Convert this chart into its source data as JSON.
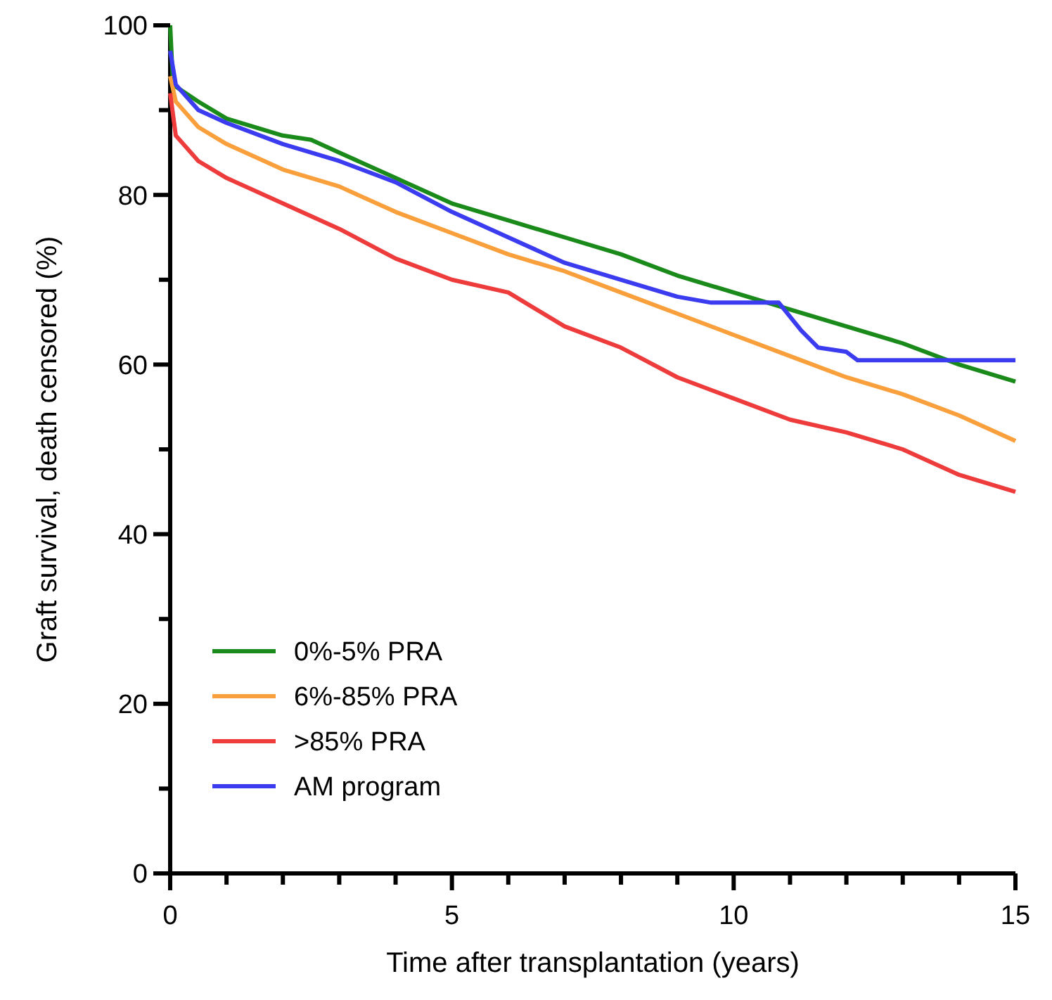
{
  "chart_data": {
    "type": "line",
    "xlabel": "Time after transplantation (years)",
    "ylabel": "Graft survival, death censored (%)",
    "xlim": [
      0,
      15
    ],
    "ylim": [
      0,
      100
    ],
    "xticks": [
      0,
      {
        "value": 1,
        "label": null
      },
      {
        "value": 2,
        "label": null
      },
      {
        "value": 3,
        "label": null
      },
      {
        "value": 4,
        "label": null
      },
      5,
      {
        "value": 6,
        "label": null
      },
      {
        "value": 7,
        "label": null
      },
      {
        "value": 8,
        "label": null
      },
      {
        "value": 9,
        "label": null
      },
      10,
      {
        "value": 11,
        "label": null
      },
      {
        "value": 12,
        "label": null
      },
      {
        "value": 13,
        "label": null
      },
      {
        "value": 14,
        "label": null
      },
      15
    ],
    "yticks": [
      0,
      {
        "value": 10,
        "label": null
      },
      20,
      {
        "value": 30,
        "label": null
      },
      40,
      {
        "value": 50,
        "label": null
      },
      60,
      {
        "value": 70,
        "label": null
      },
      80,
      {
        "value": 90,
        "label": null
      },
      100
    ],
    "grid": false,
    "legend": "bottom left",
    "line_style": "solid",
    "marker": "none",
    "series": [
      {
        "name": "0%-5% PRA",
        "color": "#1a8a1a",
        "x": [
          0,
          0.05,
          0.5,
          1,
          2,
          2.5,
          3,
          4,
          5,
          6,
          7,
          8,
          9,
          10,
          11,
          12,
          13,
          14,
          15
        ],
        "values": [
          100,
          93,
          91,
          89,
          87,
          86.5,
          85,
          82,
          79,
          77,
          75,
          73,
          70.5,
          68.5,
          66.5,
          64.5,
          62.5,
          60,
          58
        ]
      },
      {
        "name": "6%-85% PRA",
        "color": "#f9a03c",
        "x": [
          0,
          0.1,
          0.5,
          1,
          2,
          3,
          4,
          5,
          6,
          7,
          8,
          9,
          10,
          11,
          12,
          13,
          14,
          15
        ],
        "values": [
          94,
          91,
          88,
          86,
          83,
          81,
          78,
          75.5,
          73,
          71,
          68.5,
          66,
          63.5,
          61,
          58.5,
          56.5,
          54,
          51
        ]
      },
      {
        "name": ">85% PRA",
        "color": "#ee3b3b",
        "x": [
          0,
          0.1,
          0.5,
          1,
          2,
          3,
          4,
          5,
          6,
          7,
          8,
          9,
          10,
          11,
          12,
          13,
          14,
          15
        ],
        "values": [
          92,
          87,
          84,
          82,
          79,
          76,
          72.5,
          70,
          68.5,
          64.5,
          62,
          58.5,
          56,
          53.5,
          52,
          50,
          47,
          45
        ]
      },
      {
        "name": "AM program",
        "color": "#3b3bf0",
        "x": [
          0,
          0.1,
          0.5,
          1,
          2,
          3,
          4,
          5,
          6,
          7,
          8,
          9,
          9.6,
          10.8,
          11.2,
          11.5,
          12,
          12.2,
          15
        ],
        "values": [
          97,
          93,
          90,
          88.5,
          86,
          84,
          81.5,
          78,
          75,
          72,
          70,
          68,
          67.3,
          67.3,
          64,
          62,
          61.5,
          60.5,
          60.5
        ]
      }
    ]
  }
}
